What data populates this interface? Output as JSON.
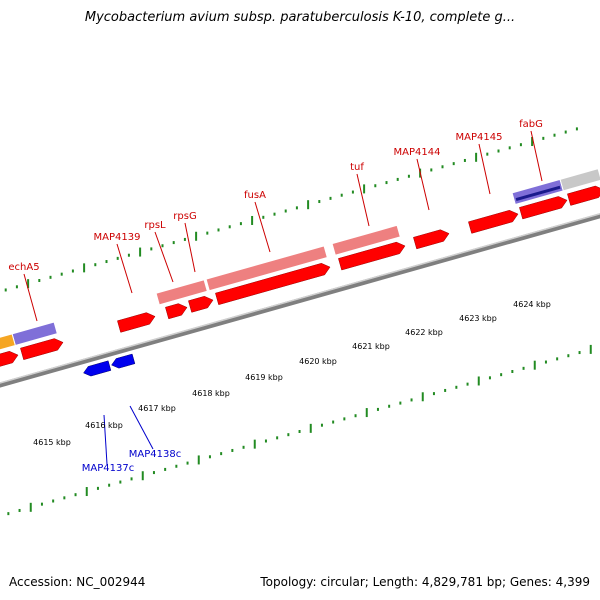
{
  "header": {
    "title": "Mycobacterium avium subsp. paratuberculosis K-10, complete g..."
  },
  "footer": {
    "accession": "Accession: NC_002944",
    "summary": "Topology: circular; Length: 4,829,781 bp; Genes: 4,399"
  },
  "colors": {
    "forward_gene": "#ff0000",
    "forward_gene_light": "#ee8080",
    "reverse_gene": "#0000ee",
    "forward_label": "#cc0000",
    "reverse_label": "#0000cc",
    "axis": "#7f7f7f",
    "tick": "#228b22",
    "feature_blue": "#7f6fd8",
    "feature_orange": "#f5a623",
    "feature_gray": "#c8c8c8",
    "feature_navy": "#1a1a8c"
  },
  "ruler": {
    "unit": "kbp",
    "labels": [
      "4615 kbp",
      "4616 kbp",
      "4617 kbp",
      "4618 kbp",
      "4619 kbp",
      "4620 kbp",
      "4621 kbp",
      "4622 kbp",
      "4623 kbp",
      "4624 kbp"
    ]
  },
  "genes_forward": [
    {
      "name": "echA5"
    },
    {
      "name": "MAP4139"
    },
    {
      "name": "rpsL"
    },
    {
      "name": "rpsG"
    },
    {
      "name": "fusA"
    },
    {
      "name": "tuf"
    },
    {
      "name": "MAP4144"
    },
    {
      "name": "MAP4145"
    },
    {
      "name": "fabG"
    }
  ],
  "genes_reverse": [
    {
      "name": "MAP4137c"
    },
    {
      "name": "MAP4138c"
    }
  ]
}
